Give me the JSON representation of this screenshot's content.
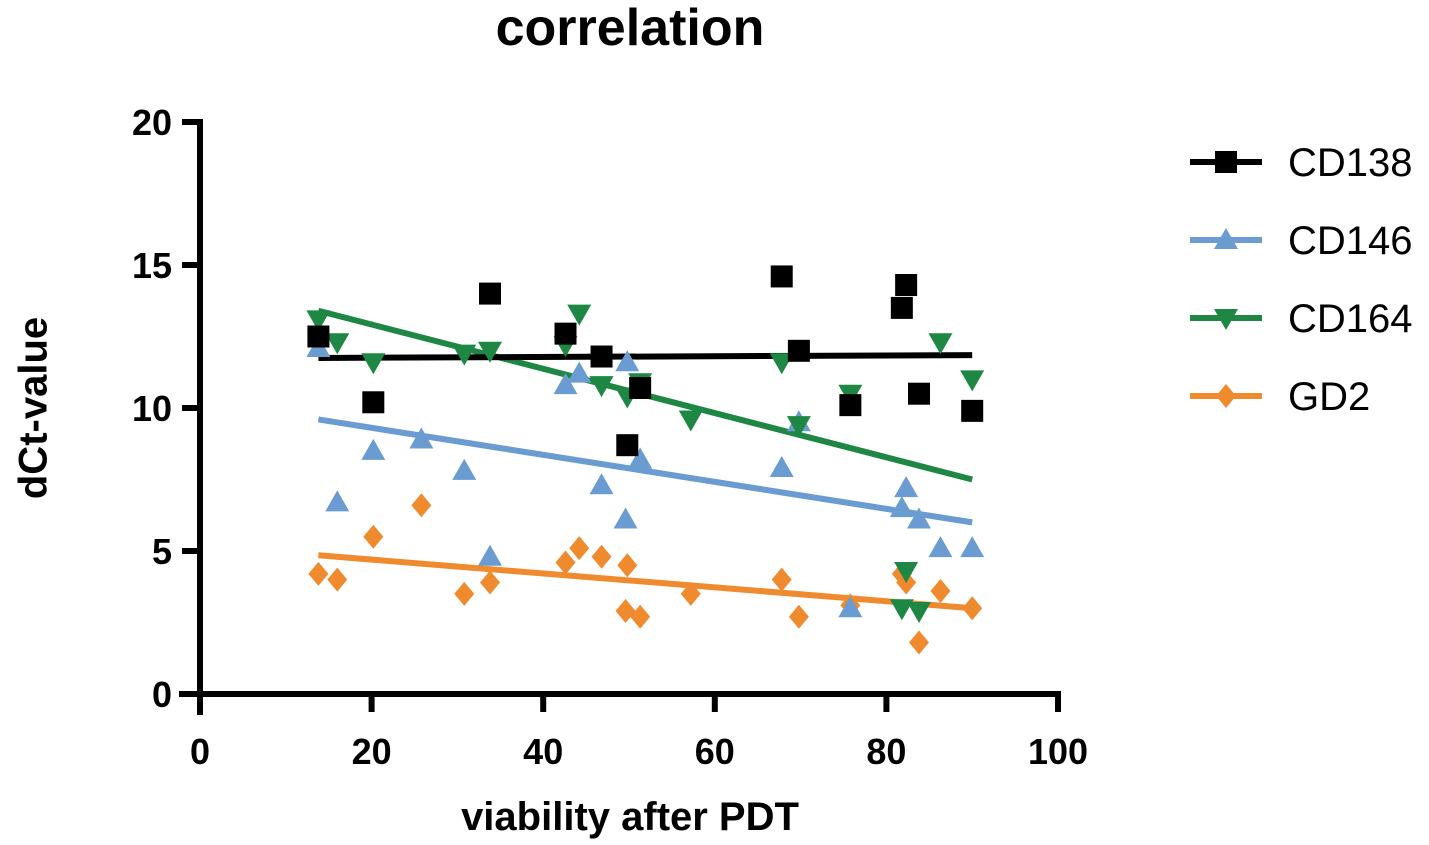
{
  "chart_data": {
    "type": "scatter",
    "title": "correlation",
    "xlabel": "viability after PDT",
    "ylabel": "dCt-value",
    "xlim": [
      0,
      100
    ],
    "ylim": [
      0,
      20
    ],
    "xticks": [
      0,
      20,
      40,
      60,
      80,
      100
    ],
    "yticks": [
      0,
      5,
      10,
      15,
      20
    ],
    "grid": false,
    "legend_position": "right",
    "series": [
      {
        "name": "CD138",
        "color": "#000000",
        "marker": "square",
        "points": [
          [
            13.8,
            12.5
          ],
          [
            20.2,
            10.2
          ],
          [
            33.8,
            14.0
          ],
          [
            42.6,
            12.6
          ],
          [
            46.8,
            11.8
          ],
          [
            49.8,
            8.7
          ],
          [
            51.3,
            10.7
          ],
          [
            67.8,
            14.6
          ],
          [
            69.8,
            12.0
          ],
          [
            75.8,
            10.1
          ],
          [
            81.8,
            13.5
          ],
          [
            82.3,
            14.3
          ],
          [
            83.8,
            10.5
          ],
          [
            90.0,
            9.9
          ]
        ],
        "trend": [
          [
            13.8,
            11.75
          ],
          [
            90.0,
            11.85
          ]
        ]
      },
      {
        "name": "CD146",
        "color": "#6a9bd1",
        "marker": "triangle-up",
        "points": [
          [
            13.8,
            12.1
          ],
          [
            16.0,
            6.7
          ],
          [
            20.2,
            8.5
          ],
          [
            25.8,
            8.9
          ],
          [
            30.8,
            7.8
          ],
          [
            33.8,
            4.8
          ],
          [
            42.6,
            10.8
          ],
          [
            44.2,
            11.2
          ],
          [
            46.8,
            7.3
          ],
          [
            49.8,
            11.6
          ],
          [
            49.6,
            6.1
          ],
          [
            51.3,
            8.2
          ],
          [
            67.8,
            7.9
          ],
          [
            69.8,
            9.5
          ],
          [
            75.8,
            3.0
          ],
          [
            81.8,
            6.5
          ],
          [
            82.3,
            7.2
          ],
          [
            83.8,
            6.1
          ],
          [
            86.3,
            5.1
          ],
          [
            90.0,
            5.1
          ]
        ],
        "trend": [
          [
            13.8,
            9.6
          ],
          [
            90.0,
            6.0
          ]
        ]
      },
      {
        "name": "CD164",
        "color": "#1e8744",
        "marker": "triangle-down",
        "points": [
          [
            13.8,
            13.1
          ],
          [
            16.0,
            12.3
          ],
          [
            20.2,
            11.6
          ],
          [
            30.8,
            11.9
          ],
          [
            33.8,
            12.0
          ],
          [
            42.6,
            12.2
          ],
          [
            44.2,
            13.3
          ],
          [
            46.8,
            10.8
          ],
          [
            49.8,
            10.4
          ],
          [
            51.3,
            10.9
          ],
          [
            57.2,
            9.6
          ],
          [
            67.8,
            11.6
          ],
          [
            69.8,
            9.4
          ],
          [
            75.8,
            10.5
          ],
          [
            81.8,
            3.0
          ],
          [
            82.3,
            4.3
          ],
          [
            83.8,
            2.9
          ],
          [
            86.3,
            12.3
          ],
          [
            90.0,
            11.0
          ]
        ],
        "trend": [
          [
            13.8,
            13.4
          ],
          [
            90.0,
            7.5
          ]
        ]
      },
      {
        "name": "GD2",
        "color": "#ef8a2e",
        "marker": "diamond",
        "points": [
          [
            13.8,
            4.2
          ],
          [
            16.0,
            4.0
          ],
          [
            20.2,
            5.5
          ],
          [
            25.8,
            6.6
          ],
          [
            30.8,
            3.5
          ],
          [
            33.8,
            3.9
          ],
          [
            42.6,
            4.6
          ],
          [
            44.2,
            5.1
          ],
          [
            46.8,
            4.8
          ],
          [
            49.8,
            4.5
          ],
          [
            49.6,
            2.9
          ],
          [
            51.3,
            2.7
          ],
          [
            57.2,
            3.5
          ],
          [
            67.8,
            4.0
          ],
          [
            69.8,
            2.7
          ],
          [
            75.8,
            3.1
          ],
          [
            81.8,
            4.2
          ],
          [
            82.3,
            3.9
          ],
          [
            83.8,
            1.8
          ],
          [
            86.3,
            3.6
          ],
          [
            90.0,
            3.0
          ]
        ],
        "trend": [
          [
            13.8,
            4.85
          ],
          [
            90.0,
            3.0
          ]
        ]
      }
    ]
  }
}
